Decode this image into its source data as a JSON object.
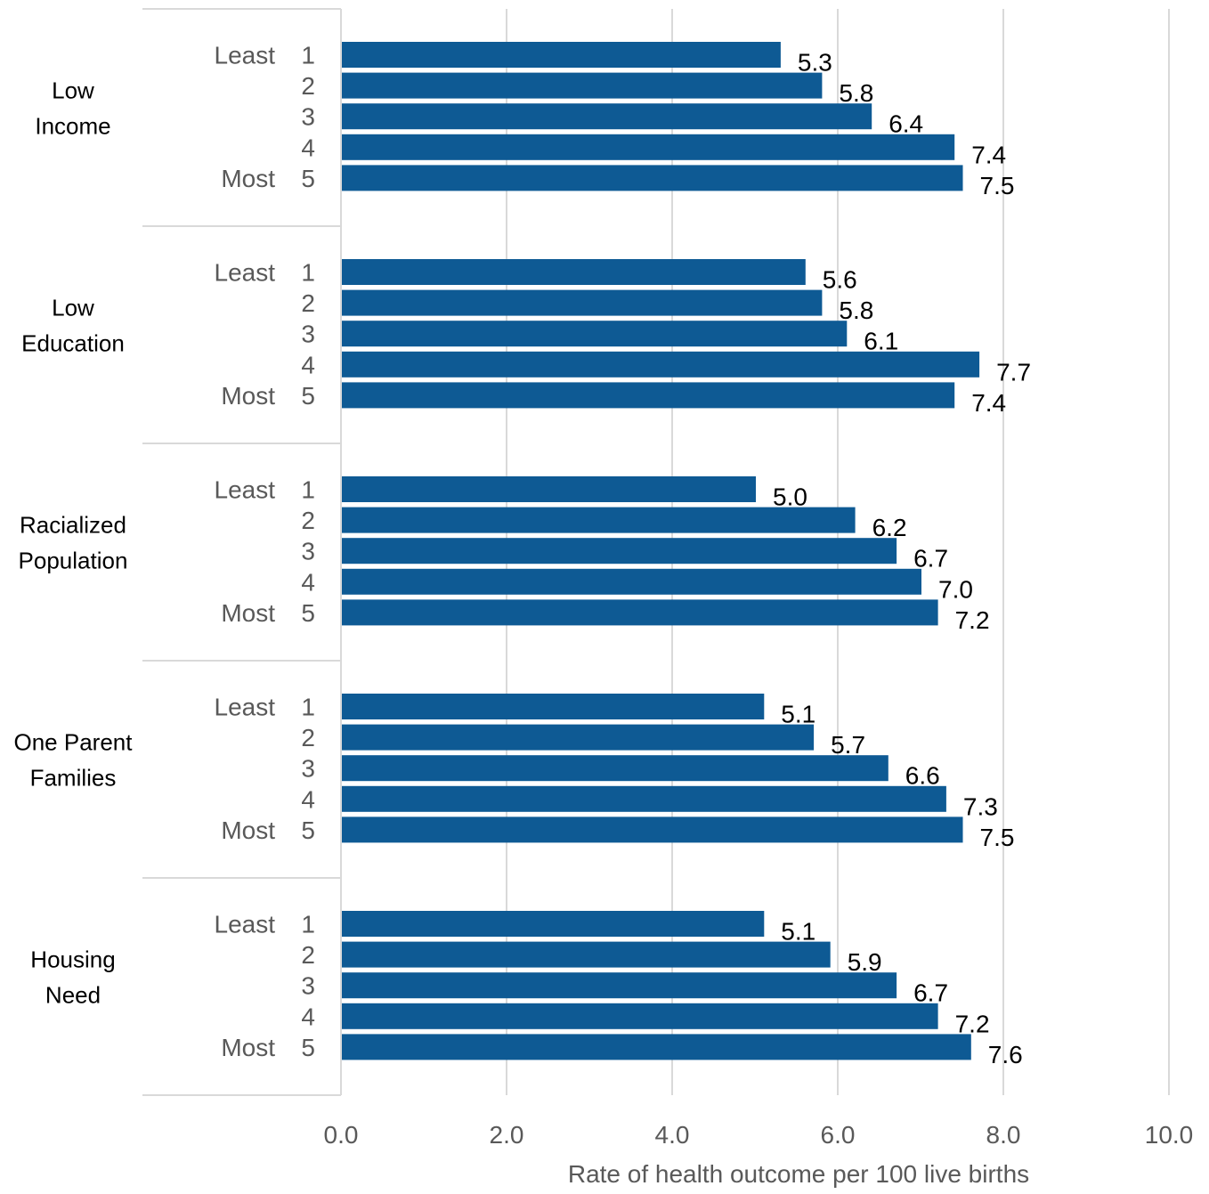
{
  "chart_data": {
    "type": "bar",
    "orientation": "horizontal",
    "xlabel": "Rate of health outcome per 100 live births",
    "xlim": [
      0,
      10
    ],
    "xticks": [
      "0.0",
      "2.0",
      "4.0",
      "6.0",
      "8.0",
      "10.0"
    ],
    "grid": true,
    "bar_color": "#0e5a94",
    "groups": [
      {
        "name_lines": [
          "Low",
          "Income"
        ],
        "bars": [
          {
            "rank_label": "Least",
            "quintile": "1",
            "value": 5.3,
            "value_label": "5.3"
          },
          {
            "rank_label": "",
            "quintile": "2",
            "value": 5.8,
            "value_label": "5.8"
          },
          {
            "rank_label": "",
            "quintile": "3",
            "value": 6.4,
            "value_label": "6.4"
          },
          {
            "rank_label": "",
            "quintile": "4",
            "value": 7.4,
            "value_label": "7.4"
          },
          {
            "rank_label": "Most",
            "quintile": "5",
            "value": 7.5,
            "value_label": "7.5"
          }
        ]
      },
      {
        "name_lines": [
          "Low",
          "Education"
        ],
        "bars": [
          {
            "rank_label": "Least",
            "quintile": "1",
            "value": 5.6,
            "value_label": "5.6"
          },
          {
            "rank_label": "",
            "quintile": "2",
            "value": 5.8,
            "value_label": "5.8"
          },
          {
            "rank_label": "",
            "quintile": "3",
            "value": 6.1,
            "value_label": "6.1"
          },
          {
            "rank_label": "",
            "quintile": "4",
            "value": 7.7,
            "value_label": "7.7"
          },
          {
            "rank_label": "Most",
            "quintile": "5",
            "value": 7.4,
            "value_label": "7.4"
          }
        ]
      },
      {
        "name_lines": [
          "Racialized",
          "Population"
        ],
        "bars": [
          {
            "rank_label": "Least",
            "quintile": "1",
            "value": 5.0,
            "value_label": "5.0"
          },
          {
            "rank_label": "",
            "quintile": "2",
            "value": 6.2,
            "value_label": "6.2"
          },
          {
            "rank_label": "",
            "quintile": "3",
            "value": 6.7,
            "value_label": "6.7"
          },
          {
            "rank_label": "",
            "quintile": "4",
            "value": 7.0,
            "value_label": "7.0"
          },
          {
            "rank_label": "Most",
            "quintile": "5",
            "value": 7.2,
            "value_label": "7.2"
          }
        ]
      },
      {
        "name_lines": [
          "One Parent",
          "Families"
        ],
        "bars": [
          {
            "rank_label": "Least",
            "quintile": "1",
            "value": 5.1,
            "value_label": "5.1"
          },
          {
            "rank_label": "",
            "quintile": "2",
            "value": 5.7,
            "value_label": "5.7"
          },
          {
            "rank_label": "",
            "quintile": "3",
            "value": 6.6,
            "value_label": "6.6"
          },
          {
            "rank_label": "",
            "quintile": "4",
            "value": 7.3,
            "value_label": "7.3"
          },
          {
            "rank_label": "Most",
            "quintile": "5",
            "value": 7.5,
            "value_label": "7.5"
          }
        ]
      },
      {
        "name_lines": [
          "Housing",
          "Need"
        ],
        "bars": [
          {
            "rank_label": "Least",
            "quintile": "1",
            "value": 5.1,
            "value_label": "5.1"
          },
          {
            "rank_label": "",
            "quintile": "2",
            "value": 5.9,
            "value_label": "5.9"
          },
          {
            "rank_label": "",
            "quintile": "3",
            "value": 6.7,
            "value_label": "6.7"
          },
          {
            "rank_label": "",
            "quintile": "4",
            "value": 7.2,
            "value_label": "7.2"
          },
          {
            "rank_label": "Most",
            "quintile": "5",
            "value": 7.6,
            "value_label": "7.6"
          }
        ]
      }
    ]
  }
}
